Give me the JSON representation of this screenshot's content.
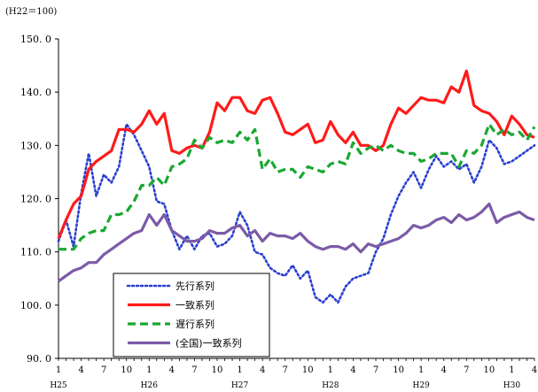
{
  "unit_label": "(H22＝100)",
  "chart_data": {
    "type": "line",
    "title": "",
    "xlabel": "",
    "ylabel": "",
    "ylim": [
      90,
      150
    ],
    "yticks": [
      "150. 0",
      "140. 0",
      "130. 0",
      "120. 0",
      "110. 0",
      "100. 0",
      "90. 0"
    ],
    "yticks_values": [
      150,
      140,
      130,
      120,
      110,
      100,
      90
    ],
    "month_labels": [
      "1",
      "4",
      "7",
      "10",
      "1",
      "4",
      "7",
      "10",
      "1",
      "4",
      "7",
      "10",
      "1",
      "4",
      "7",
      "10",
      "1",
      "4",
      "7",
      "10",
      "1",
      "4"
    ],
    "month_label_index": [
      0,
      3,
      6,
      9,
      12,
      15,
      18,
      21,
      24,
      27,
      30,
      33,
      36,
      39,
      42,
      45,
      48,
      51,
      54,
      57,
      60,
      63
    ],
    "year_labels": [
      "H25",
      "H26",
      "H27",
      "H28",
      "H29",
      "H30"
    ],
    "year_label_index": [
      0,
      12,
      24,
      36,
      48,
      60
    ],
    "grid": false,
    "legend_position": "bottom-left",
    "series": [
      {
        "name": "先行系列",
        "color": "#2b3fd0",
        "dash": "dotted",
        "values": [
          112.0,
          116.0,
          111.0,
          121.0,
          128.5,
          120.5,
          124.5,
          123.0,
          126.0,
          134.0,
          132.0,
          129.0,
          126.0,
          119.5,
          119.0,
          114.0,
          110.5,
          113.0,
          110.5,
          113.0,
          113.5,
          111.0,
          111.5,
          113.0,
          117.5,
          115.0,
          110.0,
          109.5,
          107.0,
          106.0,
          105.5,
          107.5,
          105.0,
          106.5,
          101.5,
          100.5,
          102.0,
          100.5,
          103.5,
          105.0,
          105.5,
          106.0,
          110.0,
          112.5,
          117.0,
          120.5,
          123.0,
          125.0,
          122.0,
          125.5,
          128.0,
          126.0,
          127.0,
          125.5,
          126.5,
          123.0,
          126.0,
          131.0,
          129.5,
          126.5,
          127.0,
          128.0,
          129.0,
          130.0
        ]
      },
      {
        "name": "一致系列",
        "color": "#ff1a1a",
        "dash": "solid",
        "values": [
          112.5,
          116.0,
          119.0,
          120.5,
          125.5,
          127.0,
          128.0,
          129.0,
          133.0,
          133.0,
          132.5,
          134.0,
          136.5,
          134.0,
          136.0,
          129.0,
          128.5,
          129.5,
          130.0,
          129.5,
          132.5,
          138.0,
          136.5,
          139.0,
          139.0,
          136.5,
          136.0,
          138.5,
          139.0,
          136.0,
          132.5,
          132.0,
          133.0,
          134.0,
          130.5,
          131.0,
          134.5,
          132.0,
          130.5,
          132.5,
          130.0,
          130.0,
          129.0,
          130.0,
          134.0,
          137.0,
          136.0,
          137.5,
          139.0,
          138.5,
          138.5,
          138.0,
          141.0,
          140.0,
          144.0,
          137.5,
          136.5,
          136.0,
          134.5,
          132.0,
          135.5,
          134.0,
          132.0,
          131.5
        ]
      },
      {
        "name": "遅行系列",
        "color": "#1aa832",
        "dash": "dashed",
        "values": [
          110.5,
          110.5,
          110.5,
          112.5,
          113.5,
          114.0,
          114.0,
          117.0,
          117.0,
          117.5,
          119.5,
          122.5,
          122.5,
          124.0,
          122.5,
          126.0,
          126.5,
          127.5,
          131.0,
          129.5,
          131.5,
          130.5,
          131.0,
          130.5,
          132.5,
          131.0,
          133.0,
          125.5,
          127.5,
          125.0,
          125.5,
          125.5,
          124.0,
          126.0,
          125.5,
          125.0,
          126.5,
          127.0,
          126.5,
          130.5,
          128.5,
          129.5,
          130.0,
          129.0,
          130.0,
          129.0,
          128.5,
          128.5,
          127.0,
          127.5,
          128.5,
          128.5,
          128.5,
          126.0,
          129.0,
          128.5,
          130.0,
          134.0,
          132.0,
          133.0,
          132.0,
          132.5,
          131.0,
          133.5
        ]
      },
      {
        "name": "(全国)一致系列",
        "color": "#7b5ba6",
        "dash": "solid",
        "values": [
          104.5,
          105.5,
          106.5,
          107.0,
          108.0,
          108.0,
          109.5,
          110.5,
          111.5,
          112.5,
          113.5,
          114.0,
          117.0,
          115.0,
          117.0,
          114.0,
          113.0,
          112.0,
          112.0,
          112.5,
          114.0,
          113.5,
          113.5,
          114.5,
          115.0,
          113.0,
          114.0,
          112.0,
          113.5,
          113.0,
          113.0,
          112.5,
          113.5,
          112.0,
          111.0,
          110.5,
          111.0,
          111.0,
          110.5,
          111.5,
          110.0,
          111.5,
          111.0,
          111.5,
          112.0,
          112.5,
          113.5,
          115.0,
          114.5,
          115.0,
          116.0,
          116.5,
          115.5,
          117.0,
          116.0,
          116.5,
          117.5,
          119.0,
          115.5,
          116.5,
          117.0,
          117.5,
          116.5,
          116.0
        ]
      }
    ]
  }
}
